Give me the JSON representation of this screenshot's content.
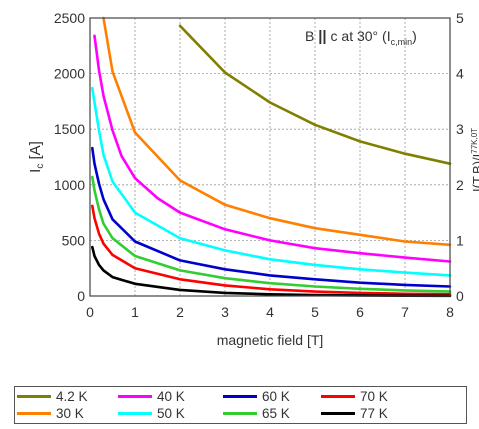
{
  "chart_data": {
    "type": "line",
    "annotation": {
      "prefix": "B ",
      "mid": " c at 30° (I",
      "sub_c": "c",
      "sub_min": ",min",
      "suffix": ")"
    },
    "xlabel": "magnetic field [T]",
    "ylabel": {
      "main": "I",
      "sub": "c",
      "unit": " [A]"
    },
    "ylabel_right": {
      "main": "I",
      "mid": "(T,B)/I",
      "sup": "77K,0T"
    },
    "xlim": [
      0,
      8
    ],
    "ylim": [
      0,
      2500
    ],
    "ylim_right": [
      0,
      5
    ],
    "x_ticks": [
      "0",
      "1",
      "2",
      "3",
      "4",
      "5",
      "6",
      "7",
      "8"
    ],
    "y_ticks": [
      "0",
      "500",
      "1000",
      "1500",
      "2000",
      "2500"
    ],
    "y_ticks_right": [
      "0",
      "1",
      "2",
      "3",
      "4",
      "5"
    ],
    "grid": true,
    "legend_placement": "bottom",
    "series": [
      {
        "name": "4.2 K",
        "color": "#808000",
        "x": [
          2,
          3,
          4,
          5,
          6,
          7,
          8
        ],
        "values": [
          2430,
          2010,
          1740,
          1540,
          1390,
          1280,
          1190
        ]
      },
      {
        "name": "30 K",
        "color": "#ff8000",
        "x": [
          0.3,
          0.5,
          1,
          2,
          3,
          4,
          5,
          6,
          7,
          8
        ],
        "values": [
          2500,
          2020,
          1470,
          1040,
          820,
          700,
          610,
          550,
          490,
          460
        ]
      },
      {
        "name": "40 K",
        "color": "#ff00ff",
        "x": [
          0.1,
          0.2,
          0.3,
          0.5,
          0.7,
          1,
          1.5,
          2,
          3,
          4,
          5,
          6,
          7,
          8
        ],
        "values": [
          2340,
          2030,
          1800,
          1490,
          1260,
          1060,
          880,
          750,
          600,
          500,
          430,
          385,
          345,
          310
        ]
      },
      {
        "name": "50 K",
        "color": "#00ffff",
        "x": [
          0.05,
          0.1,
          0.2,
          0.3,
          0.5,
          1,
          2,
          3,
          4,
          5,
          6,
          7,
          8
        ],
        "values": [
          1870,
          1740,
          1490,
          1270,
          1030,
          750,
          520,
          410,
          330,
          280,
          240,
          210,
          185
        ]
      },
      {
        "name": "60 K",
        "color": "#0000cc",
        "x": [
          0.05,
          0.1,
          0.2,
          0.3,
          0.5,
          1,
          2,
          3,
          4,
          5,
          6,
          7,
          8
        ],
        "values": [
          1330,
          1190,
          1010,
          870,
          690,
          490,
          320,
          240,
          185,
          150,
          120,
          100,
          85
        ]
      },
      {
        "name": "65 K",
        "color": "#33cc33",
        "x": [
          0.05,
          0.1,
          0.2,
          0.3,
          0.5,
          1,
          2,
          3,
          4,
          5,
          6,
          7,
          8
        ],
        "values": [
          1070,
          950,
          780,
          650,
          520,
          360,
          230,
          160,
          115,
          85,
          65,
          50,
          40
        ]
      },
      {
        "name": "70 K",
        "color": "#ff0000",
        "x": [
          0.05,
          0.1,
          0.2,
          0.3,
          0.5,
          1,
          2,
          3,
          4,
          5,
          6,
          7,
          8
        ],
        "values": [
          810,
          700,
          560,
          470,
          370,
          250,
          150,
          95,
          60,
          40,
          28,
          20,
          15
        ]
      },
      {
        "name": "77 K",
        "color": "#000000",
        "x": [
          0.05,
          0.1,
          0.2,
          0.3,
          0.5,
          1,
          2,
          3,
          4,
          5,
          6,
          7,
          8
        ],
        "values": [
          440,
          360,
          280,
          230,
          170,
          110,
          55,
          28,
          15,
          8,
          5,
          3,
          2
        ]
      }
    ]
  }
}
